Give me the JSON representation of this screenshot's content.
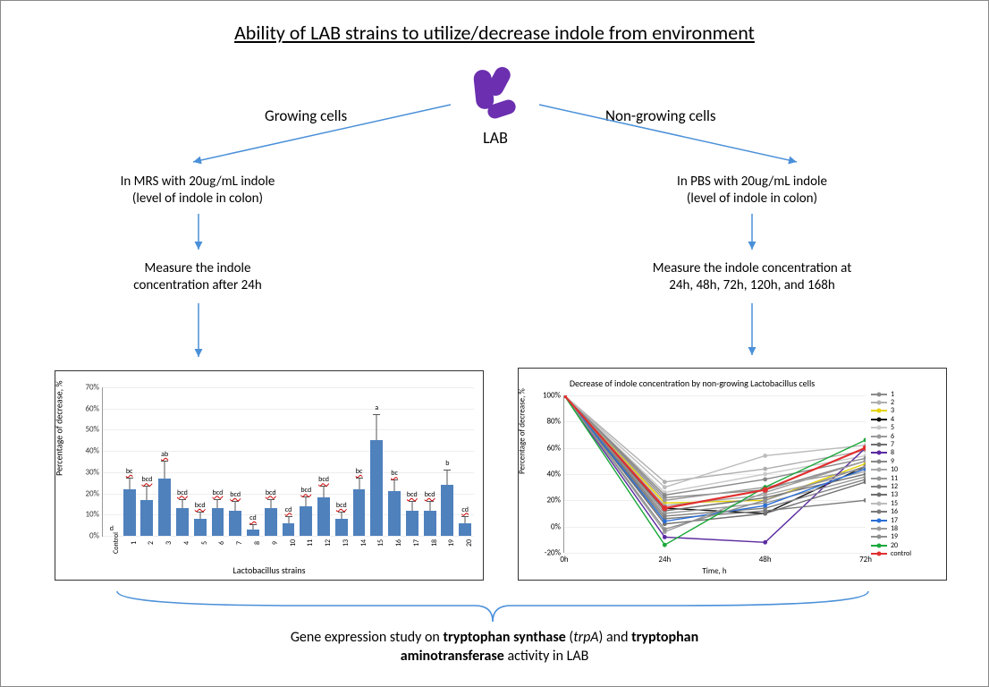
{
  "title": "Ability of LAB strains to utilize/decrease indole from environment",
  "lab": {
    "label": "LAB",
    "icon_color": "#6b2fb0"
  },
  "branches": {
    "left": {
      "heading": "Growing cells",
      "condition_line1": "In MRS with 20ug/mL indole",
      "condition_line2": "(level of indole in colon)",
      "measure_line1": "Measure the indole",
      "measure_line2": "concentration after 24h"
    },
    "right": {
      "heading": "Non-growing cells",
      "condition_line1": "In PBS with 20ug/mL indole",
      "condition_line2": "(level of indole in colon)",
      "measure_line1": "Measure the indole concentration at",
      "measure_line2": "24h, 48h, 72h, 120h, and 168h"
    }
  },
  "arrow_color": "#4a90d9",
  "bar_chart": {
    "ytitle": "Percentage of decrease, %",
    "xtitle": "Lactobacillus strains",
    "ylim": [
      0,
      70
    ],
    "ytick_step": 10,
    "bar_color": "#4f81bd",
    "err_color": "#555555",
    "categories": [
      "Control",
      "1",
      "2",
      "3",
      "4",
      "5",
      "6",
      "7",
      "8",
      "9",
      "10",
      "11",
      "12",
      "13",
      "14",
      "15",
      "16",
      "17",
      "18",
      "19",
      "20"
    ],
    "values": [
      0,
      22,
      17,
      27,
      13,
      8,
      13,
      12,
      3,
      13,
      6,
      14,
      18,
      8,
      22,
      45,
      21,
      12,
      12,
      24,
      6
    ],
    "errors": [
      0,
      5,
      6,
      8,
      4,
      3,
      4,
      4,
      2,
      4,
      3,
      4,
      5,
      3,
      5,
      12,
      5,
      4,
      4,
      7,
      3
    ],
    "sig_labels": [
      "d",
      "bc",
      "bcd",
      "ab",
      "bcd",
      "bcd",
      "bcd",
      "bcd",
      "cd",
      "bcd",
      "cd",
      "bcd",
      "bcd",
      "bcd",
      "bc",
      "a",
      "bc",
      "bcd",
      "bcd",
      "b",
      "cd"
    ]
  },
  "line_chart": {
    "title": "Decrease of indole concentration by non-growing Lactobacillus cells",
    "ytitle": "Percentage of decrease, %",
    "xtitle": "Time, h",
    "ylim": [
      -20,
      100
    ],
    "yticks": [
      -20,
      0,
      20,
      40,
      60,
      80,
      100
    ],
    "xticks": [
      "0h",
      "24h",
      "48h",
      "72h"
    ],
    "series_colors": {
      "1": "#8a8a8a",
      "2": "#b0b0b0",
      "3": "#e6d200",
      "4": "#111111",
      "5": "#c9c9c9",
      "6": "#9a9a9a",
      "7": "#707070",
      "8": "#5b2aa0",
      "9": "#888888",
      "10": "#a9a9a9",
      "11": "#969696",
      "12": "#808080",
      "13": "#6e6e6e",
      "15": "#bcbcbc",
      "16": "#7a7a7a",
      "17": "#2a6fd6",
      "18": "#9d9d9d",
      "19": "#8f8f8f",
      "20": "#1aa83a",
      "control": "#e03030"
    },
    "legend_order": [
      "1",
      "2",
      "3",
      "4",
      "5",
      "6",
      "7",
      "8",
      "9",
      "10",
      "11",
      "12",
      "13",
      "15",
      "16",
      "17",
      "18",
      "19",
      "20",
      "control"
    ],
    "values": {
      "1": [
        100,
        22,
        28,
        50
      ],
      "2": [
        100,
        34,
        44,
        58
      ],
      "3": [
        100,
        18,
        20,
        48
      ],
      "4": [
        100,
        14,
        10,
        46
      ],
      "5": [
        100,
        26,
        40,
        54
      ],
      "6": [
        100,
        20,
        30,
        44
      ],
      "7": [
        100,
        12,
        22,
        40
      ],
      "8": [
        100,
        -8,
        -12,
        60
      ],
      "9": [
        100,
        24,
        36,
        52
      ],
      "10": [
        100,
        16,
        24,
        42
      ],
      "11": [
        100,
        10,
        18,
        38
      ],
      "12": [
        100,
        8,
        14,
        36
      ],
      "13": [
        100,
        2,
        10,
        34
      ],
      "15": [
        100,
        30,
        54,
        62
      ],
      "16": [
        100,
        6,
        12,
        20
      ],
      "17": [
        100,
        4,
        16,
        44
      ],
      "18": [
        100,
        -4,
        26,
        50
      ],
      "19": [
        100,
        -2,
        20,
        46
      ],
      "20": [
        100,
        -14,
        30,
        66
      ],
      "control": [
        100,
        14,
        28,
        60
      ]
    }
  },
  "bottom": {
    "line1_pre": "Gene expression study on ",
    "trp_syn": "tryptophan synthase",
    "paren_open": " (",
    "trpA": "trpA",
    "paren_close": ") and ",
    "trp_amino": "tryptophan",
    "line2_pre": "aminotransferase",
    "line2_post": " activity in LAB"
  }
}
